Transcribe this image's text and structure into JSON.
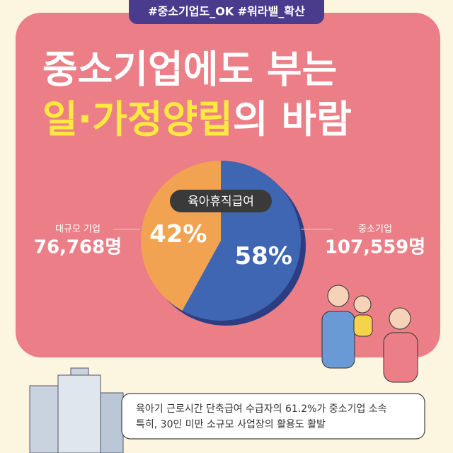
{
  "tag": "#중소기업도_OK #워라밸_확산",
  "title_line1": "중소기업에도 부는",
  "title_highlight": "일·가정양립",
  "title_rest": "의 바람",
  "chart_data": {
    "type": "pie",
    "title": "육아휴직급여",
    "categories": [
      "중소기업",
      "대규모 기업"
    ],
    "values": [
      58,
      42
    ],
    "value_labels": [
      "58%",
      "42%"
    ],
    "counts": [
      "107,559명",
      "76,768명"
    ],
    "colors": [
      "#3e66b2",
      "#f2a351"
    ]
  },
  "footer": {
    "line1": "육아기 근로시간 단축급여 수급자의 61.2%가 중소기업 소속",
    "line2": "특히, 30인 미만 소규모 사업장의 활용도 활발"
  }
}
